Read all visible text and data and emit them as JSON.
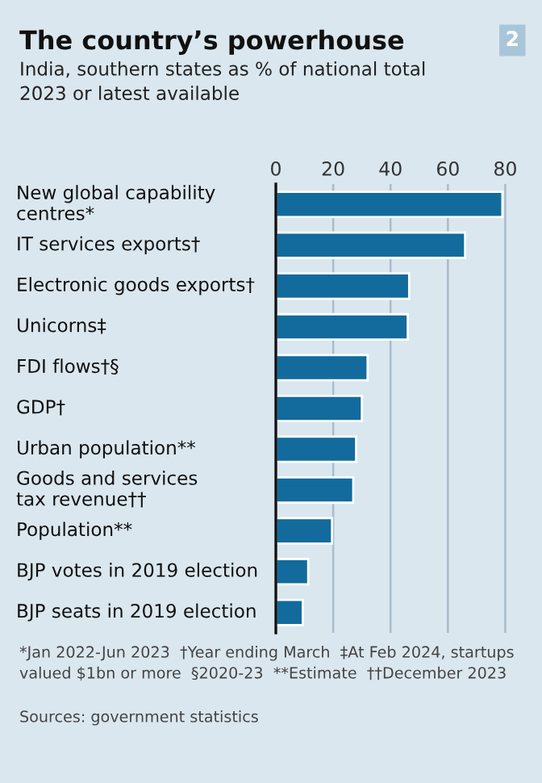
{
  "chart_data": {
    "type": "bar",
    "orientation": "horizontal",
    "title": "The country’s powerhouse",
    "subtitle": "India, southern states as % of national total\n2023 or latest available",
    "categories": [
      "New global capability\ncentres*",
      "IT services exports†",
      "Electronic goods exports†",
      "Unicorns‡",
      "FDI flows†§",
      "GDP†",
      "Urban population**",
      "Goods and services\ntax revenue††",
      "Population**",
      "BJP votes in 2019 election",
      "BJP seats in 2019 election"
    ],
    "values": [
      79,
      66,
      46.5,
      46,
      32,
      30,
      28,
      27,
      19.6,
      11.3,
      9.4
    ],
    "color": "#126b9c",
    "xlim": [
      0,
      81
    ],
    "xticks": [
      0,
      20,
      40,
      60,
      80
    ],
    "grid": "x",
    "annotations": [
      "2",
      "*Jan 2022-Jun 2023  †Year ending March  ‡At Feb 2024, startups valued $1bn or more  §2020-23  **Estimate  ††December 2023",
      "Sources: government statistics"
    ]
  }
}
